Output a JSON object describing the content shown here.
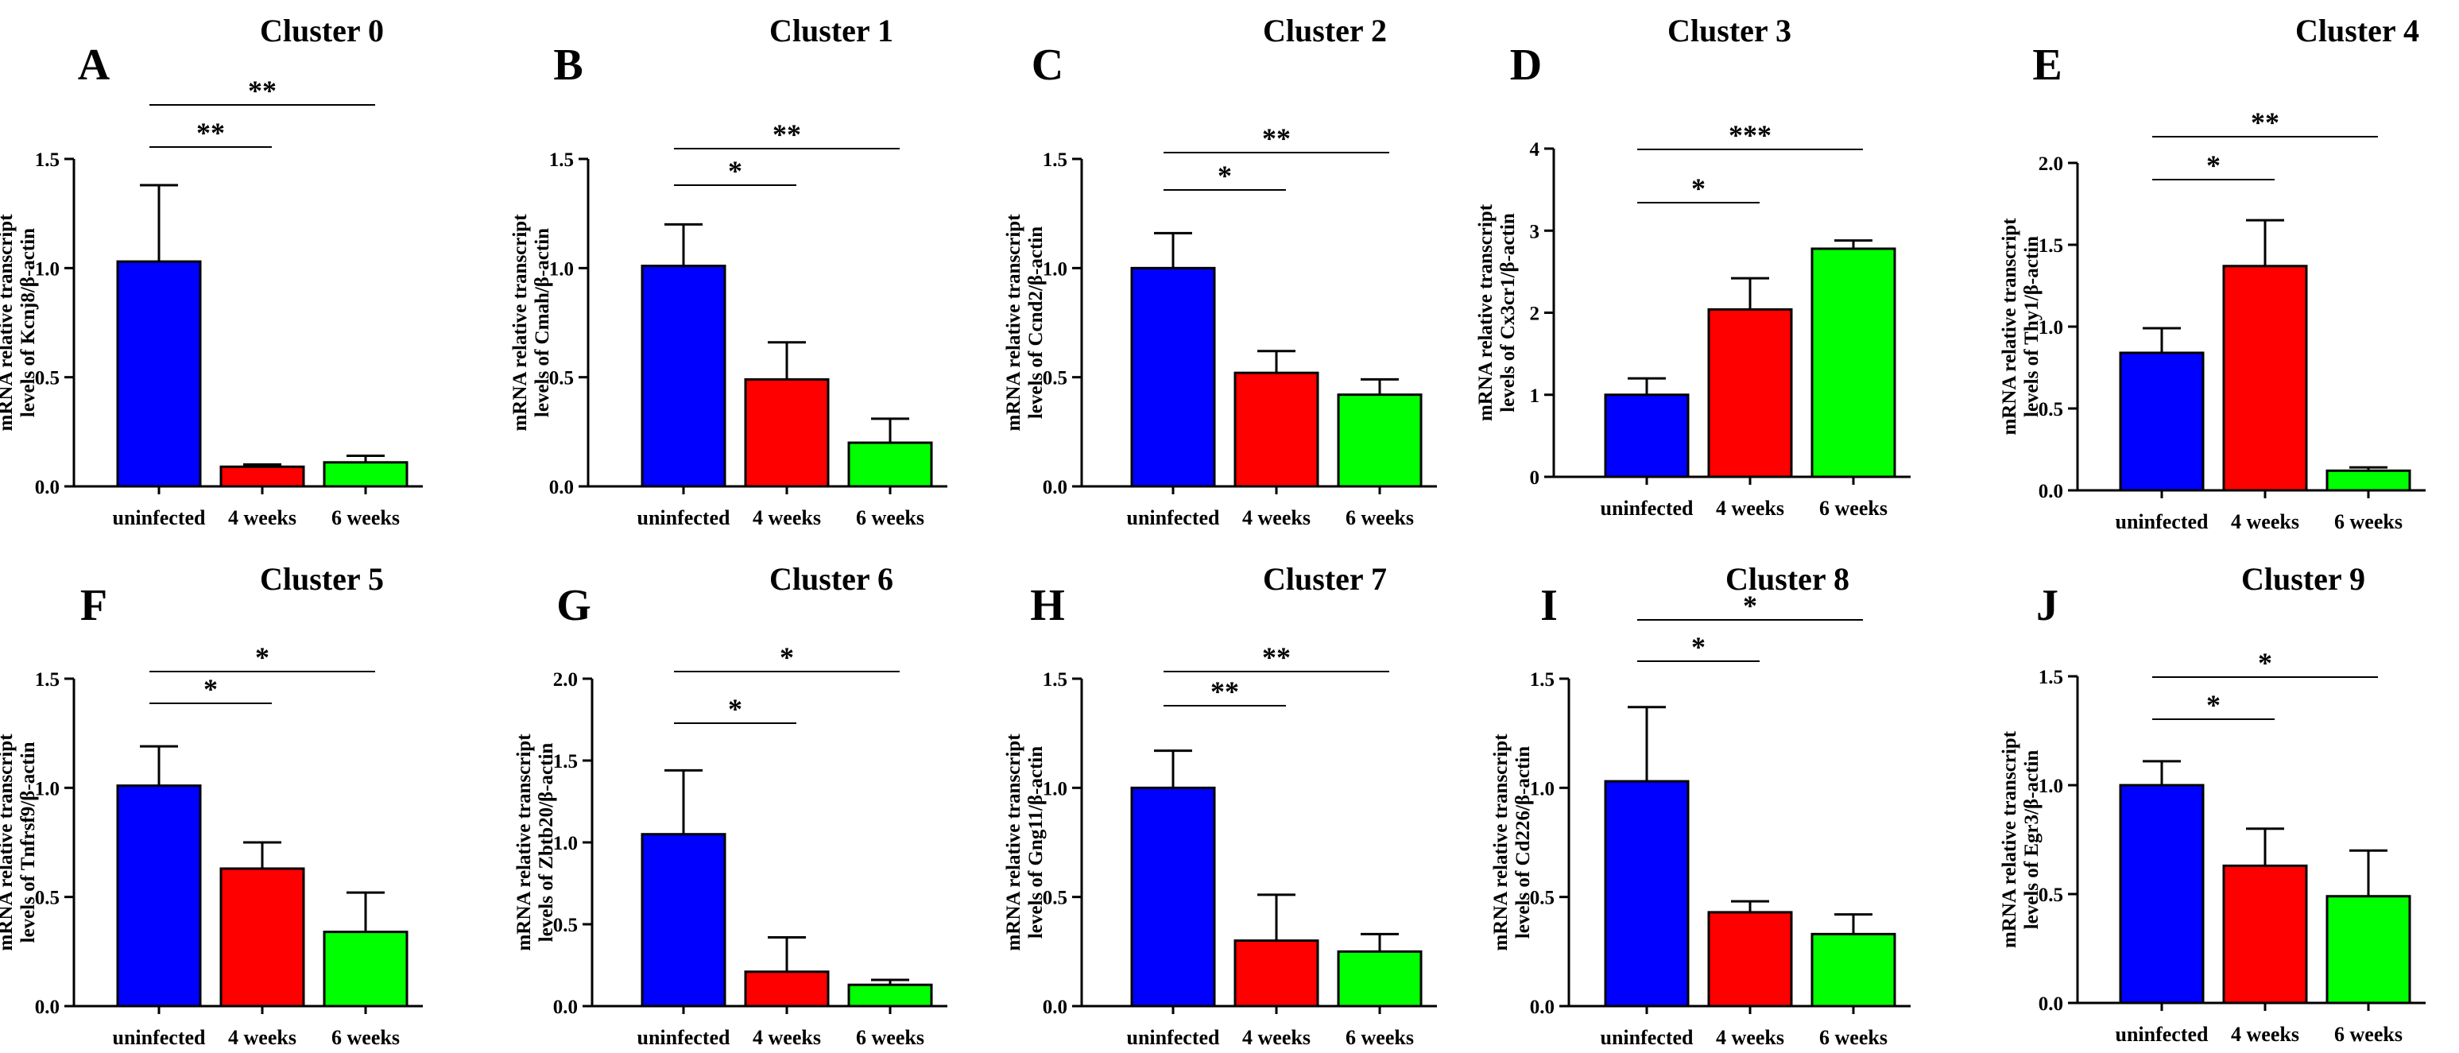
{
  "figure": {
    "colors": {
      "uninfected": "#0000ff",
      "4 weeks": "#ff0000",
      "6 weeks": "#00ff00"
    }
  },
  "chart_data": [
    {
      "type": "bar",
      "panel": "A",
      "title": "Cluster 0",
      "ylabel_line1": "mRNA relative transcript",
      "ylabel_line2": "levels of Kcnj8/β-actin",
      "categories": [
        "uninfected",
        "4 weeks",
        "6 weeks"
      ],
      "values": [
        1.03,
        0.09,
        0.11
      ],
      "errors": [
        0.35,
        0.01,
        0.03
      ],
      "ylim": [
        0,
        1.5
      ],
      "yticks": [
        "0.0",
        "0.5",
        "1.0",
        "1.5"
      ],
      "significance": [
        {
          "from": 0,
          "to": 1,
          "label": "**"
        },
        {
          "from": 0,
          "to": 2,
          "label": "**"
        }
      ]
    },
    {
      "type": "bar",
      "panel": "B",
      "title": "Cluster 1",
      "ylabel_line1": "mRNA relative transcript",
      "ylabel_line2": "levels of Cmah/β-actin",
      "categories": [
        "uninfected",
        "4 weeks",
        "6 weeks"
      ],
      "values": [
        1.01,
        0.49,
        0.2
      ],
      "errors": [
        0.19,
        0.17,
        0.11
      ],
      "ylim": [
        0,
        1.5
      ],
      "yticks": [
        "0.0",
        "0.5",
        "1.0",
        "1.5"
      ],
      "significance": [
        {
          "from": 0,
          "to": 1,
          "label": "*"
        },
        {
          "from": 0,
          "to": 2,
          "label": "**"
        }
      ]
    },
    {
      "type": "bar",
      "panel": "C",
      "title": "Cluster 2",
      "ylabel_line1": "mRNA relative transcript",
      "ylabel_line2": "levels of Ccnd2/β-actin",
      "categories": [
        "uninfected",
        "4 weeks",
        "6 weeks"
      ],
      "values": [
        1.0,
        0.52,
        0.42
      ],
      "errors": [
        0.16,
        0.1,
        0.07
      ],
      "ylim": [
        0,
        1.5
      ],
      "yticks": [
        "0.0",
        "0.5",
        "1.0",
        "1.5"
      ],
      "significance": [
        {
          "from": 0,
          "to": 1,
          "label": "*"
        },
        {
          "from": 0,
          "to": 2,
          "label": "**"
        }
      ]
    },
    {
      "type": "bar",
      "panel": "D",
      "title": "Cluster 3",
      "ylabel_line1": "mRNA relative transcript",
      "ylabel_line2": "levels of Cx3cr1/β-actin",
      "categories": [
        "uninfected",
        "4 weeks",
        "6 weeks"
      ],
      "values": [
        1.0,
        2.04,
        2.78
      ],
      "errors": [
        0.2,
        0.38,
        0.1
      ],
      "ylim": [
        0,
        4
      ],
      "yticks": [
        "0",
        "1",
        "2",
        "3",
        "4"
      ],
      "significance": [
        {
          "from": 0,
          "to": 1,
          "label": "*"
        },
        {
          "from": 0,
          "to": 2,
          "label": "***"
        }
      ]
    },
    {
      "type": "bar",
      "panel": "E",
      "title": "Cluster 4",
      "ylabel_line1": "mRNA relative transcript",
      "ylabel_line2": "levels of Thy1/β-actin",
      "categories": [
        "uninfected",
        "4 weeks",
        "6 weeks"
      ],
      "values": [
        0.84,
        1.37,
        0.12
      ],
      "errors": [
        0.15,
        0.28,
        0.02
      ],
      "ylim": [
        0,
        2.0
      ],
      "yticks": [
        "0.0",
        "0.5",
        "1.0",
        "1.5",
        "2.0"
      ],
      "significance": [
        {
          "from": 0,
          "to": 1,
          "label": "*"
        },
        {
          "from": 0,
          "to": 2,
          "label": "**"
        }
      ]
    },
    {
      "type": "bar",
      "panel": "F",
      "title": "Cluster 5",
      "ylabel_line1": "mRNA relative transcript",
      "ylabel_line2": "levels of Tnfrsf9/β-actin",
      "categories": [
        "uninfected",
        "4 weeks",
        "6 weeks"
      ],
      "values": [
        1.01,
        0.63,
        0.34
      ],
      "errors": [
        0.18,
        0.12,
        0.18
      ],
      "ylim": [
        0,
        1.5
      ],
      "yticks": [
        "0.0",
        "0.5",
        "1.0",
        "1.5"
      ],
      "significance": [
        {
          "from": 0,
          "to": 1,
          "label": "*"
        },
        {
          "from": 0,
          "to": 2,
          "label": "*"
        }
      ]
    },
    {
      "type": "bar",
      "panel": "G",
      "title": "Cluster 6",
      "ylabel_line1": "mRNA relative transcript",
      "ylabel_line2": "levels of Zbtb20/β-actin",
      "categories": [
        "uninfected",
        "4 weeks",
        "6 weeks"
      ],
      "values": [
        1.05,
        0.21,
        0.13
      ],
      "errors": [
        0.39,
        0.21,
        0.03
      ],
      "ylim": [
        0,
        2.0
      ],
      "yticks": [
        "0.0",
        "0.5",
        "1.0",
        "1.5",
        "2.0"
      ],
      "significance": [
        {
          "from": 0,
          "to": 1,
          "label": "*"
        },
        {
          "from": 0,
          "to": 2,
          "label": "*"
        }
      ]
    },
    {
      "type": "bar",
      "panel": "H",
      "title": "Cluster 7",
      "ylabel_line1": "mRNA relative transcript",
      "ylabel_line2": "levels of Gng11/β-actin",
      "categories": [
        "uninfected",
        "4 weeks",
        "6 weeks"
      ],
      "values": [
        1.0,
        0.3,
        0.25
      ],
      "errors": [
        0.17,
        0.21,
        0.08
      ],
      "ylim": [
        0,
        1.5
      ],
      "yticks": [
        "0.0",
        "0.5",
        "1.0",
        "1.5"
      ],
      "significance": [
        {
          "from": 0,
          "to": 1,
          "label": "**"
        },
        {
          "from": 0,
          "to": 2,
          "label": "**"
        }
      ]
    },
    {
      "type": "bar",
      "panel": "I",
      "title": "Cluster 8",
      "ylabel_line1": "mRNA relative transcript",
      "ylabel_line2": "levels of Cd226/β-actin",
      "categories": [
        "uninfected",
        "4 weeks",
        "6 weeks"
      ],
      "values": [
        1.03,
        0.43,
        0.33
      ],
      "errors": [
        0.34,
        0.05,
        0.09
      ],
      "ylim": [
        0,
        1.5
      ],
      "yticks": [
        "0.0",
        "0.5",
        "1.0",
        "1.5"
      ],
      "significance": [
        {
          "from": 0,
          "to": 1,
          "label": "*"
        },
        {
          "from": 0,
          "to": 2,
          "label": "*"
        }
      ]
    },
    {
      "type": "bar",
      "panel": "J",
      "title": "Cluster 9",
      "ylabel_line1": "mRNA relative transcript",
      "ylabel_line2": "levels of Egr3/β-actin",
      "categories": [
        "uninfected",
        "4 weeks",
        "6 weeks"
      ],
      "values": [
        1.0,
        0.63,
        0.49
      ],
      "errors": [
        0.11,
        0.17,
        0.21
      ],
      "ylim": [
        0,
        1.5
      ],
      "yticks": [
        "0.0",
        "0.5",
        "1.0",
        "1.5"
      ],
      "significance": [
        {
          "from": 0,
          "to": 1,
          "label": "*"
        },
        {
          "from": 0,
          "to": 2,
          "label": "*"
        }
      ]
    }
  ]
}
